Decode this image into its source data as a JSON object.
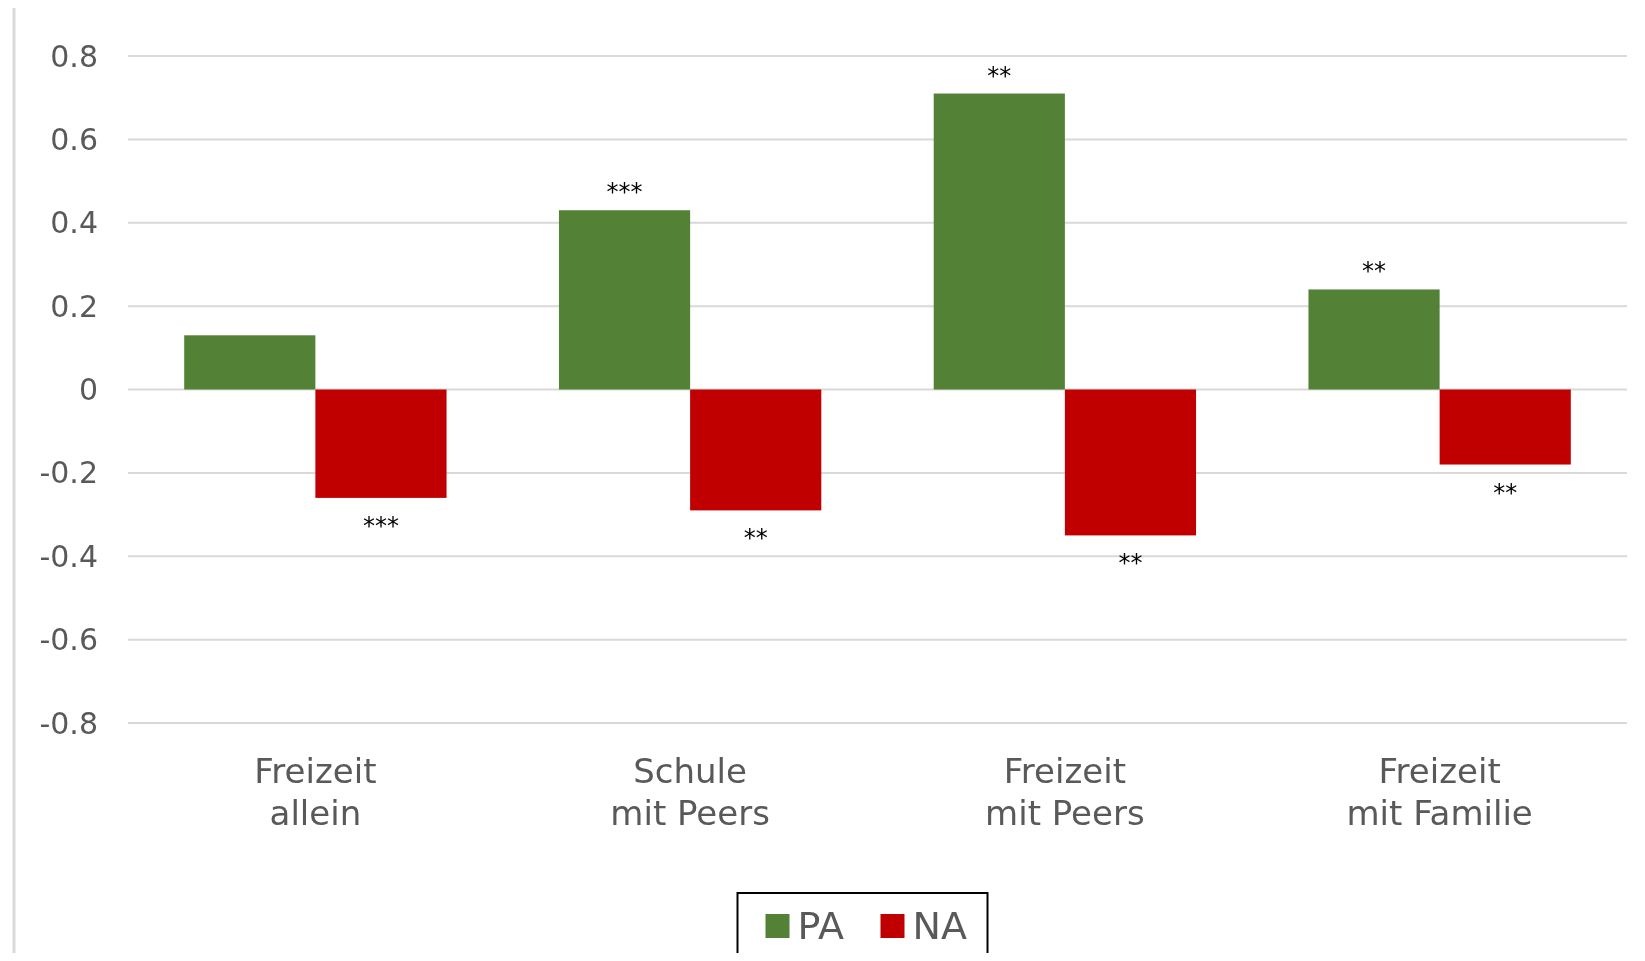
{
  "chart_data": {
    "type": "bar",
    "categories": [
      "Freizeit\nallein",
      "Schule\nmit Peers",
      "Freizeit\nmit Peers",
      "Freizeit\nmit Familie"
    ],
    "series": [
      {
        "name": "PA",
        "color": "#538135",
        "values": [
          0.13,
          0.43,
          0.71,
          0.24
        ]
      },
      {
        "name": "NA",
        "color": "#c00000",
        "values": [
          -0.26,
          -0.29,
          -0.35,
          -0.18
        ]
      }
    ],
    "ylim": [
      -0.8,
      0.8
    ],
    "yticks": [
      -0.8,
      -0.6,
      -0.4,
      -0.2,
      0,
      0.2,
      0.4,
      0.6,
      0.8
    ],
    "grid": "y",
    "legend": "bottom",
    "annotations": [
      {
        "text": "***",
        "x": "Freizeit\nallein",
        "y": -0.26
      },
      {
        "text": "***",
        "x": "Schule\nmit Peers",
        "y": 0.43
      },
      {
        "text": "**",
        "x": "Schule\nmit Peers",
        "y": -0.29
      },
      {
        "text": "**",
        "x": "Freizeit\nmit Peers",
        "y": 0.71
      },
      {
        "text": "**",
        "x": "Freizeit\nmit Peers",
        "y": -0.35
      },
      {
        "text": "**",
        "x": "Freizeit\nmit Familie",
        "y": 0.24
      },
      {
        "text": "**",
        "x": "Freizeit\nmit Familie",
        "y": -0.18
      }
    ]
  }
}
